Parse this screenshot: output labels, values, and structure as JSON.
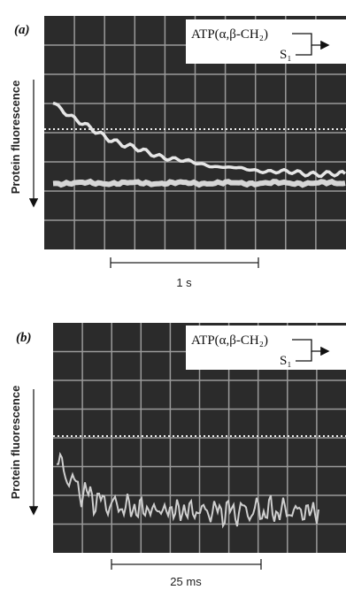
{
  "panels": [
    {
      "tag": "(a)",
      "y_label": "Protein fluorescence",
      "legend": [
        "ATP(α,β-CH₂)",
        "S₁"
      ],
      "scale_bar": "1 s"
    },
    {
      "tag": "(b)",
      "y_label": "Protein fluorescence",
      "legend": [
        "ATP(α,β-CH₂)",
        "S₁"
      ],
      "scale_bar": "25 ms"
    }
  ]
}
